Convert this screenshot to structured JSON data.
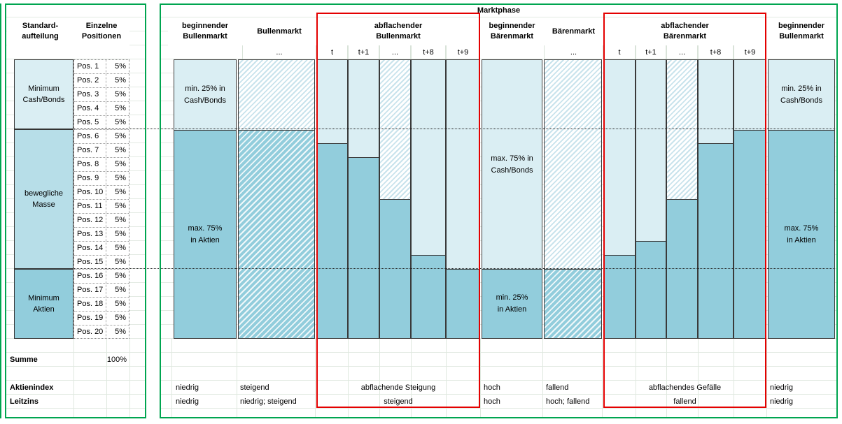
{
  "colors": {
    "fill_light": "#DAEEF3",
    "fill_medium": "#B7DEE8",
    "fill_dark": "#92CDDC",
    "panel_border_green": "#00A550",
    "highlight_red": "#E40000"
  },
  "left_panel": {
    "header_standard": {
      "line1": "Standard-",
      "line2": "aufteilung"
    },
    "header_positionen": {
      "line1": "Einzelne",
      "line2": "Positionen"
    },
    "blocks": [
      {
        "line1": "Minimum",
        "line2": "Cash/Bonds",
        "color": "#DAEEF3"
      },
      {
        "line1": "bewegliche",
        "line2": "Masse",
        "color": "#B7DEE8"
      },
      {
        "line1": "Minimum",
        "line2": "Aktien",
        "color": "#92CDDC"
      }
    ],
    "positions": [
      {
        "label": "Pos. 1",
        "value": "5%"
      },
      {
        "label": "Pos. 2",
        "value": "5%"
      },
      {
        "label": "Pos. 3",
        "value": "5%"
      },
      {
        "label": "Pos. 4",
        "value": "5%"
      },
      {
        "label": "Pos. 5",
        "value": "5%"
      },
      {
        "label": "Pos. 6",
        "value": "5%"
      },
      {
        "label": "Pos. 7",
        "value": "5%"
      },
      {
        "label": "Pos. 8",
        "value": "5%"
      },
      {
        "label": "Pos. 9",
        "value": "5%"
      },
      {
        "label": "Pos. 10",
        "value": "5%"
      },
      {
        "label": "Pos. 11",
        "value": "5%"
      },
      {
        "label": "Pos. 12",
        "value": "5%"
      },
      {
        "label": "Pos. 13",
        "value": "5%"
      },
      {
        "label": "Pos. 14",
        "value": "5%"
      },
      {
        "label": "Pos. 15",
        "value": "5%"
      },
      {
        "label": "Pos. 16",
        "value": "5%"
      },
      {
        "label": "Pos. 17",
        "value": "5%"
      },
      {
        "label": "Pos. 18",
        "value": "5%"
      },
      {
        "label": "Pos. 19",
        "value": "5%"
      },
      {
        "label": "Pos. 20",
        "value": "5%"
      }
    ],
    "summe_label": "Summe",
    "summe_value": "100%",
    "aktienindex_label": "Aktienindex",
    "leitzins_label": "Leitzins"
  },
  "marktphase": {
    "title": "Marktphase",
    "groups": [
      {
        "line1": "beginnender",
        "line2": "Bullenmarkt",
        "sub": []
      },
      {
        "line1": "Bullenmarkt",
        "line2": "",
        "sub": [
          "..."
        ]
      },
      {
        "line1": "abflachender",
        "line2": "Bullenmarkt",
        "sub": [
          "t",
          "t+1",
          "...",
          "t+8",
          "t+9"
        ],
        "highlighted": true
      },
      {
        "line1": "beginnender",
        "line2": "Bärenmarkt",
        "sub": []
      },
      {
        "line1": "Bärenmarkt",
        "line2": "",
        "sub": [
          "..."
        ]
      },
      {
        "line1": "abflachender",
        "line2": "Bärenmarkt",
        "sub": [
          "t",
          "t+1",
          "...",
          "t+8",
          "t+9"
        ],
        "highlighted": true
      },
      {
        "line1": "beginnender",
        "line2": "Bullenmarkt",
        "sub": []
      }
    ],
    "aktienindex_values": [
      "niedrig",
      "steigend",
      "abflachende Steigung",
      "hoch",
      "fallend",
      "abflachendes Gefälle",
      "niedrig"
    ],
    "leitzins_values": [
      "niedrig",
      "niedrig; steigend",
      "steigend",
      "hoch",
      "hoch; fallend",
      "fallend",
      "niedrig"
    ]
  },
  "chart_data": {
    "type": "bar",
    "subtype": "stacked-100pct-columns",
    "title": "Marktphase",
    "unit": "percent of portfolio",
    "ylim": [
      0,
      100
    ],
    "reference_lines_pct": [
      25,
      75
    ],
    "stack_order_top_to_bottom": [
      "Cash/Bonds",
      "Aktien"
    ],
    "columns": [
      {
        "phase": "beginnender Bullenmarkt",
        "tick": "",
        "cash_pct": 25,
        "aktien_pct": 75,
        "style": "solid",
        "top_label": [
          "min. 25% in",
          "Cash/Bonds"
        ],
        "bottom_label": [
          "max. 75%",
          "in Aktien"
        ]
      },
      {
        "phase": "Bullenmarkt",
        "tick": "...",
        "cash_pct": 25,
        "aktien_pct": 75,
        "style": "hatched"
      },
      {
        "phase": "abflachender Bullenmarkt",
        "tick": "t",
        "cash_pct": 30,
        "aktien_pct": 70,
        "style": "solid"
      },
      {
        "phase": "abflachender Bullenmarkt",
        "tick": "t+1",
        "cash_pct": 35,
        "aktien_pct": 65,
        "style": "solid"
      },
      {
        "phase": "abflachender Bullenmarkt",
        "tick": "...",
        "cash_pct": 50,
        "aktien_pct": 50,
        "style": "hatched-top"
      },
      {
        "phase": "abflachender Bullenmarkt",
        "tick": "t+8",
        "cash_pct": 70,
        "aktien_pct": 30,
        "style": "solid"
      },
      {
        "phase": "abflachender Bullenmarkt",
        "tick": "t+9",
        "cash_pct": 75,
        "aktien_pct": 25,
        "style": "solid"
      },
      {
        "phase": "beginnender Bärenmarkt",
        "tick": "",
        "cash_pct": 75,
        "aktien_pct": 25,
        "style": "solid",
        "top_label": [
          "max. 75% in",
          "Cash/Bonds"
        ],
        "bottom_label": [
          "min. 25%",
          "in Aktien"
        ]
      },
      {
        "phase": "Bärenmarkt",
        "tick": "...",
        "cash_pct": 75,
        "aktien_pct": 25,
        "style": "hatched"
      },
      {
        "phase": "abflachender Bärenmarkt",
        "tick": "t",
        "cash_pct": 70,
        "aktien_pct": 30,
        "style": "solid"
      },
      {
        "phase": "abflachender Bärenmarkt",
        "tick": "t+1",
        "cash_pct": 65,
        "aktien_pct": 35,
        "style": "solid"
      },
      {
        "phase": "abflachender Bärenmarkt",
        "tick": "...",
        "cash_pct": 50,
        "aktien_pct": 50,
        "style": "hatched-top"
      },
      {
        "phase": "abflachender Bärenmarkt",
        "tick": "t+8",
        "cash_pct": 30,
        "aktien_pct": 70,
        "style": "solid"
      },
      {
        "phase": "abflachender Bärenmarkt",
        "tick": "t+9",
        "cash_pct": 25,
        "aktien_pct": 75,
        "style": "solid"
      },
      {
        "phase": "beginnender Bullenmarkt",
        "tick": "",
        "cash_pct": 25,
        "aktien_pct": 75,
        "style": "solid",
        "top_label": [
          "min. 25% in",
          "Cash/Bonds"
        ],
        "bottom_label": [
          "max. 75%",
          "in Aktien"
        ]
      }
    ]
  }
}
